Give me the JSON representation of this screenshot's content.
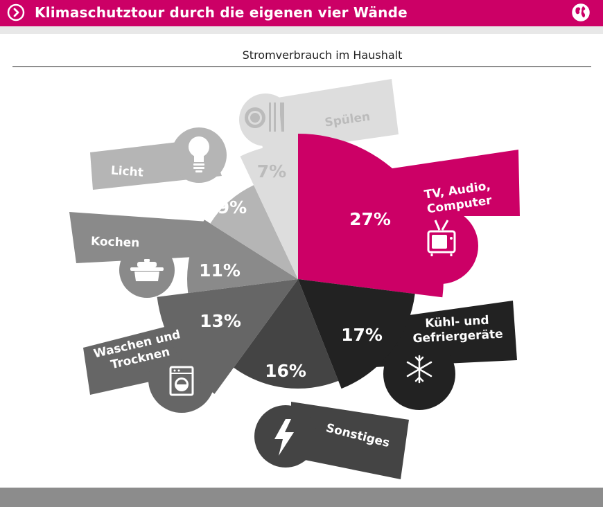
{
  "header": {
    "title": "Klimaschutztour durch die eigenen vier Wände",
    "nav_icon": "chevron-right-circle-icon",
    "globe_icon": "globe-icon",
    "accent_color": "#cc0066"
  },
  "chart_data": {
    "type": "pie",
    "title": "Stromverbrauch im Haushalt",
    "series": [
      {
        "name": "TV, Audio, Computer",
        "label_lines": [
          "TV, Audio,",
          "Computer"
        ],
        "value": 27,
        "value_label": "27%",
        "color": "#cc0066",
        "icon": "tv-icon"
      },
      {
        "name": "Kühl- und Gefriergeräte",
        "label_lines": [
          "Kühl- und",
          "Gefriergeräte"
        ],
        "value": 17,
        "value_label": "17%",
        "color": "#222222",
        "icon": "snowflake-icon"
      },
      {
        "name": "Sonstiges",
        "label_lines": [
          "Sonstiges"
        ],
        "value": 16,
        "value_label": "16%",
        "color": "#444444",
        "icon": "lightning-icon"
      },
      {
        "name": "Waschen und Trocknen",
        "label_lines": [
          "Waschen und",
          "Trocknen"
        ],
        "value": 13,
        "value_label": "13%",
        "color": "#666666",
        "icon": "washing-machine-icon"
      },
      {
        "name": "Kochen",
        "label_lines": [
          "Kochen"
        ],
        "value": 11,
        "value_label": "11%",
        "color": "#8a8a8a",
        "icon": "cooking-pot-icon"
      },
      {
        "name": "Licht",
        "label_lines": [
          "Licht"
        ],
        "value": 9,
        "value_label": "9%",
        "color": "#b5b5b5",
        "icon": "light-bulb-icon"
      },
      {
        "name": "Spülen",
        "label_lines": [
          "Spülen"
        ],
        "value": 7,
        "value_label": "7%",
        "color": "#dddddd",
        "icon": "dishes-icon"
      }
    ]
  }
}
